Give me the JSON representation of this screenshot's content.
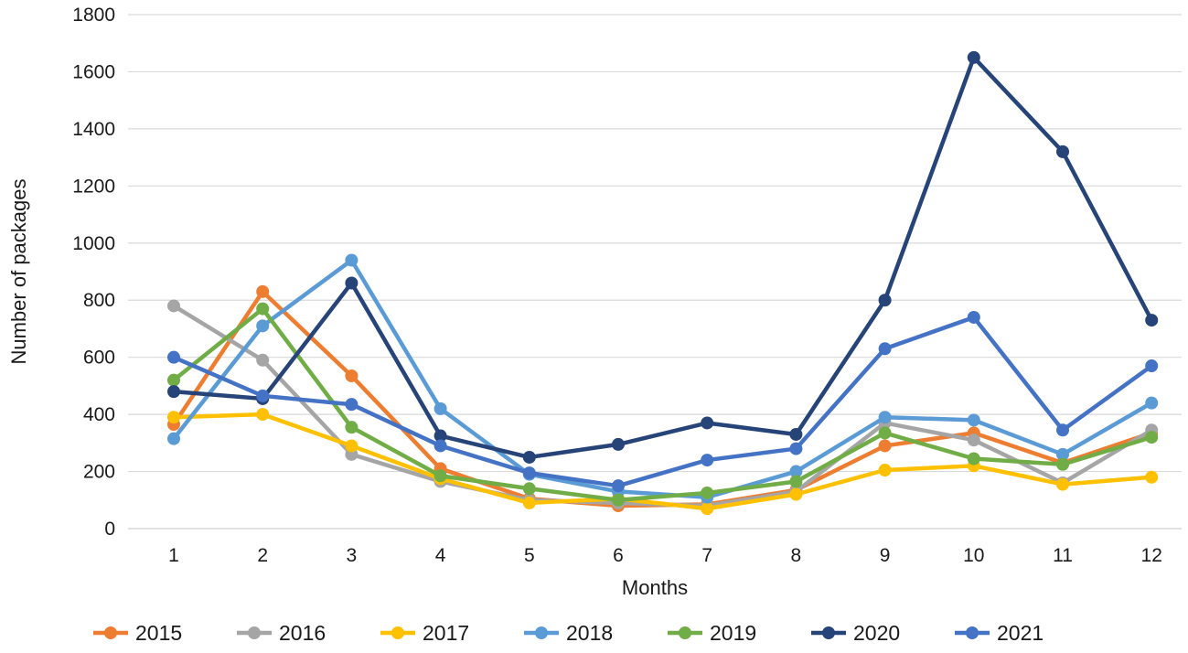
{
  "chart_data": {
    "type": "line",
    "title": "",
    "xlabel": "Months",
    "ylabel": "Number of packages",
    "x": [
      1,
      2,
      3,
      4,
      5,
      6,
      7,
      8,
      9,
      10,
      11,
      12
    ],
    "ylim": [
      0,
      1800
    ],
    "ytick_step": 200,
    "grid": "horizontal-only",
    "gridline_color": "#d9d9d9",
    "legend_position": "bottom",
    "marker": "circle",
    "series": [
      {
        "name": "2015",
        "color": "#ED7D31",
        "values": [
          365,
          830,
          535,
          210,
          105,
          80,
          85,
          135,
          290,
          335,
          230,
          335
        ]
      },
      {
        "name": "2016",
        "color": "#A5A5A5",
        "values": [
          780,
          590,
          260,
          165,
          100,
          90,
          80,
          130,
          370,
          310,
          160,
          345
        ]
      },
      {
        "name": "2017",
        "color": "#FFC000",
        "values": [
          390,
          400,
          290,
          175,
          90,
          105,
          70,
          120,
          205,
          220,
          155,
          180
        ]
      },
      {
        "name": "2018",
        "color": "#5B9BD5",
        "values": [
          315,
          710,
          940,
          420,
          190,
          130,
          110,
          200,
          390,
          380,
          260,
          440
        ]
      },
      {
        "name": "2019",
        "color": "#70AD47",
        "values": [
          520,
          770,
          355,
          185,
          140,
          100,
          125,
          165,
          335,
          245,
          225,
          320
        ]
      },
      {
        "name": "2020",
        "color": "#264478",
        "values": [
          480,
          455,
          860,
          325,
          250,
          295,
          370,
          330,
          800,
          1650,
          1320,
          730
        ]
      },
      {
        "name": "2021",
        "color": "#4472C4",
        "values": [
          600,
          465,
          435,
          290,
          195,
          150,
          240,
          280,
          630,
          740,
          345,
          570
        ]
      }
    ]
  }
}
